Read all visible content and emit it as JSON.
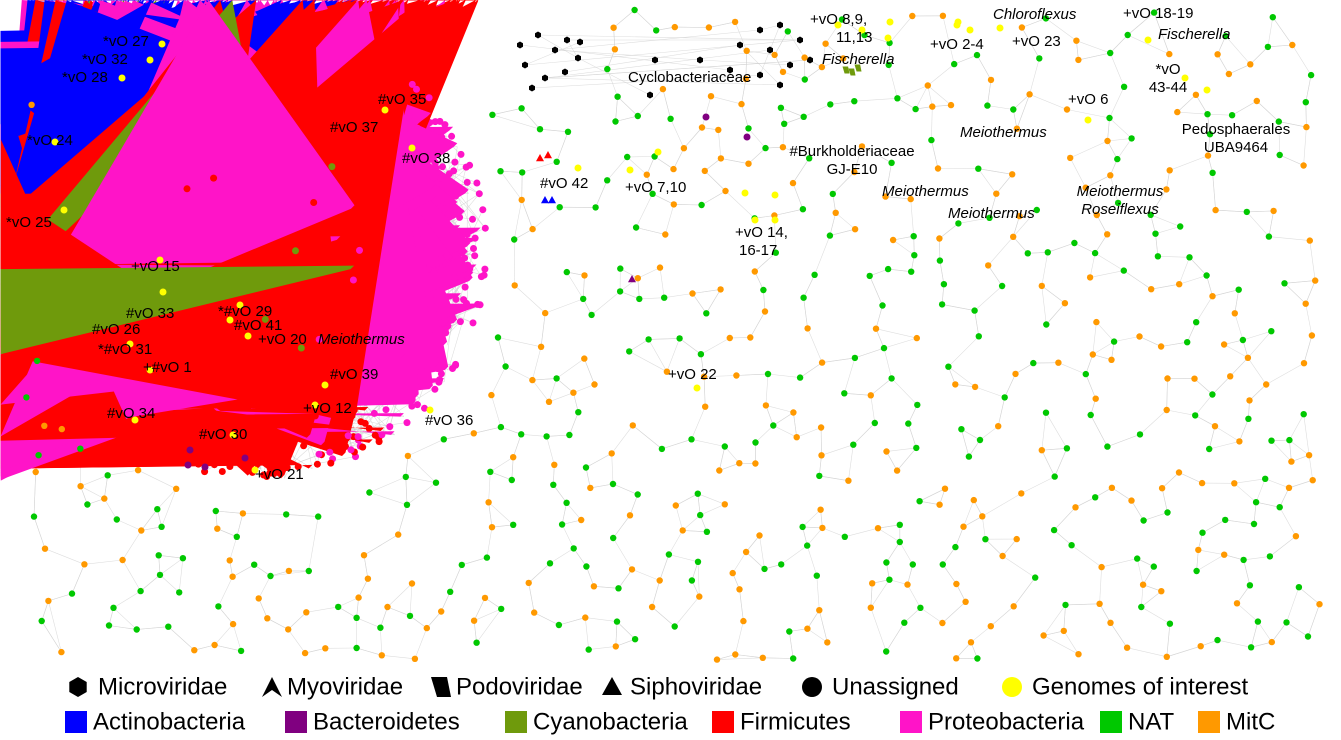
{
  "labels": [
    {
      "lines": [
        "*vO 27"
      ]
    },
    {
      "lines": [
        "*vO 32"
      ]
    },
    {
      "lines": [
        "*vO 28"
      ]
    },
    {
      "lines": [
        "*vO 24"
      ]
    },
    {
      "lines": [
        "*vO 25"
      ]
    },
    {
      "lines": [
        "#vO 35"
      ]
    },
    {
      "lines": [
        "#vO 37"
      ]
    },
    {
      "lines": [
        "#vO 38"
      ]
    },
    {
      "lines": [
        "+vO 15"
      ]
    },
    {
      "lines": [
        "#vO 33"
      ]
    },
    {
      "lines": [
        "*#vO 29"
      ]
    },
    {
      "lines": [
        "#vO 26"
      ]
    },
    {
      "lines": [
        "#vO 41"
      ]
    },
    {
      "lines": [
        "+vO 20"
      ]
    },
    {
      "lines": [
        "Meiothermus"
      ],
      "italic": true
    },
    {
      "lines": [
        "*#vO 31"
      ]
    },
    {
      "lines": [
        "+#vO 1"
      ]
    },
    {
      "lines": [
        "#vO 39"
      ]
    },
    {
      "lines": [
        "#vO 34"
      ]
    },
    {
      "lines": [
        "+vO 12"
      ]
    },
    {
      "lines": [
        "#vO 36"
      ]
    },
    {
      "lines": [
        "#vO 30"
      ]
    },
    {
      "lines": [
        "+vO 21"
      ]
    },
    {
      "lines": [
        "#vO 42"
      ]
    },
    {
      "lines": [
        "Cyclobacteriaceae"
      ]
    },
    {
      "lines": [
        "+vO 8,9,",
        "11,13"
      ]
    },
    {
      "lines": [
        "Fischerella"
      ],
      "italic": true
    },
    {
      "lines": [
        "+vO 2-4"
      ]
    },
    {
      "lines": [
        "Chloroflexus"
      ],
      "italic": true
    },
    {
      "lines": [
        "+vO 23"
      ]
    },
    {
      "lines": [
        "+vO 18-19"
      ]
    },
    {
      "lines": [
        "Fischerella"
      ],
      "italic": true
    },
    {
      "lines": [
        "*vO",
        "43-44"
      ]
    },
    {
      "lines": [
        "+vO 6"
      ]
    },
    {
      "lines": [
        "Meiothermus"
      ],
      "italic": true
    },
    {
      "lines": [
        "Pedosphaerales",
        "UBA9464"
      ]
    },
    {
      "lines": [
        "#Burkholderiaceae",
        "GJ-E10"
      ]
    },
    {
      "lines": [
        "+vO 7,10"
      ]
    },
    {
      "lines": [
        "Meiothermus"
      ],
      "italic": true
    },
    {
      "lines": [
        "Meiothermus"
      ],
      "italic": true
    },
    {
      "lines": [
        "Meiothermus",
        "Roseiflexus"
      ],
      "italic": true
    },
    {
      "lines": [
        "+vO 14,",
        "16-17"
      ]
    },
    {
      "lines": [
        "+vO 22"
      ]
    }
  ],
  "legend": {
    "shapes": [
      "Microviridae",
      "Myoviridae",
      "Podoviridae",
      "Siphoviridae",
      "Unassigned",
      "Genomes of interest"
    ],
    "phyla": [
      {
        "name": "Actinobacteria",
        "color": "#0000ff"
      },
      {
        "name": "Bacteroidetes",
        "color": "#800080"
      },
      {
        "name": "Cyanobacteria",
        "color": "#6f9a0c"
      },
      {
        "name": "Firmicutes",
        "color": "#ff0000"
      },
      {
        "name": "Proteobacteria",
        "color": "#ff14c8"
      },
      {
        "name": "NAT",
        "color": "#00c800"
      },
      {
        "name": "MitC",
        "color": "#ff9900"
      }
    ]
  }
}
